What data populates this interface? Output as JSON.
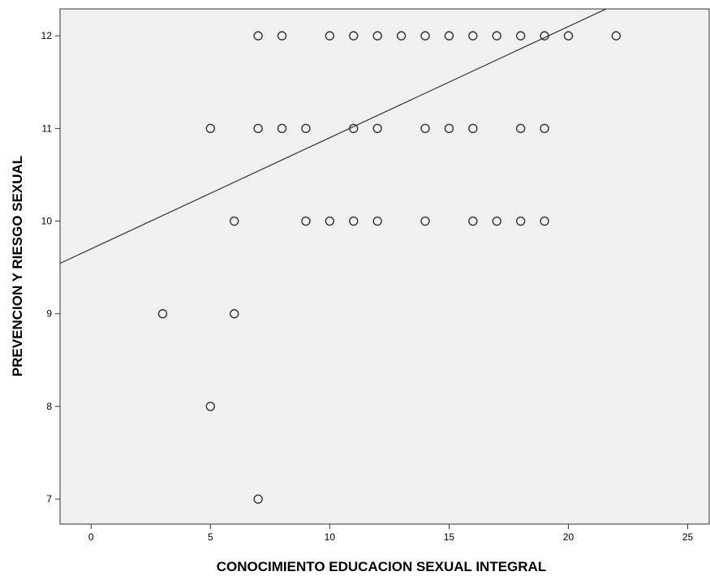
{
  "chart_data": {
    "type": "scatter",
    "title": "",
    "xlabel": "CONOCIMIENTO EDUCACION SEXUAL INTEGRAL",
    "ylabel": "PREVENCION Y RIESGO SEXUAL",
    "xlim": [
      -1.3,
      25.9
    ],
    "ylim": [
      6.73,
      12.29
    ],
    "x_ticks": [
      0,
      5,
      10,
      15,
      20,
      25
    ],
    "y_ticks": [
      7,
      8,
      9,
      10,
      11,
      12
    ],
    "grid": false,
    "plot_background": "#f0f0f0",
    "marker_color": "#333333",
    "line_color": "#333333",
    "points": [
      {
        "x": 7,
        "y": 12
      },
      {
        "x": 8,
        "y": 12
      },
      {
        "x": 10,
        "y": 12
      },
      {
        "x": 11,
        "y": 12
      },
      {
        "x": 12,
        "y": 12
      },
      {
        "x": 13,
        "y": 12
      },
      {
        "x": 14,
        "y": 12
      },
      {
        "x": 15,
        "y": 12
      },
      {
        "x": 16,
        "y": 12
      },
      {
        "x": 17,
        "y": 12
      },
      {
        "x": 18,
        "y": 12
      },
      {
        "x": 19,
        "y": 12
      },
      {
        "x": 20,
        "y": 12
      },
      {
        "x": 22,
        "y": 12
      },
      {
        "x": 5,
        "y": 11
      },
      {
        "x": 7,
        "y": 11
      },
      {
        "x": 8,
        "y": 11
      },
      {
        "x": 9,
        "y": 11
      },
      {
        "x": 11,
        "y": 11
      },
      {
        "x": 12,
        "y": 11
      },
      {
        "x": 14,
        "y": 11
      },
      {
        "x": 15,
        "y": 11
      },
      {
        "x": 16,
        "y": 11
      },
      {
        "x": 18,
        "y": 11
      },
      {
        "x": 19,
        "y": 11
      },
      {
        "x": 6,
        "y": 10
      },
      {
        "x": 9,
        "y": 10
      },
      {
        "x": 10,
        "y": 10
      },
      {
        "x": 11,
        "y": 10
      },
      {
        "x": 12,
        "y": 10
      },
      {
        "x": 14,
        "y": 10
      },
      {
        "x": 16,
        "y": 10
      },
      {
        "x": 17,
        "y": 10
      },
      {
        "x": 18,
        "y": 10
      },
      {
        "x": 19,
        "y": 10
      },
      {
        "x": 3,
        "y": 9
      },
      {
        "x": 6,
        "y": 9
      },
      {
        "x": 5,
        "y": 8
      },
      {
        "x": 7,
        "y": 7
      }
    ],
    "fit_line": {
      "intercept": 9.7,
      "slope": 0.12
    }
  }
}
